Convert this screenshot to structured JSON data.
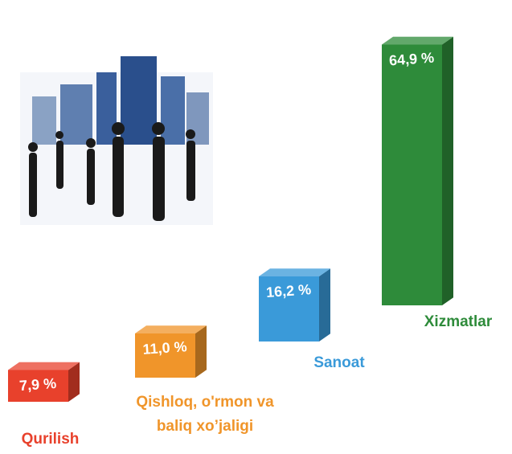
{
  "chart_data": {
    "type": "bar",
    "categories": [
      "Qurilish",
      "Qishloq, o'rmon va baliq xo’jaligi",
      "Sanoat",
      "Xizmatlar"
    ],
    "values": [
      7.9,
      11.0,
      16.2,
      64.9
    ],
    "value_labels": [
      "7,9 %",
      "11,0 %",
      "16,2 %",
      "64,9 %"
    ],
    "colors": [
      "#e8412c",
      "#f0952a",
      "#3a9ad9",
      "#2e8b3a"
    ]
  }
}
